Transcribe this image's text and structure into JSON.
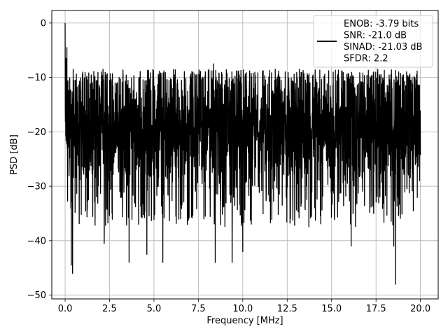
{
  "chart_data": {
    "type": "line",
    "xlabel": "Frequency [MHz]",
    "ylabel": "PSD [dB]",
    "xlim": [
      -0.75,
      21.0
    ],
    "ylim": [
      -50.7,
      2.3
    ],
    "x_ticks": [
      0.0,
      2.5,
      5.0,
      7.5,
      10.0,
      12.5,
      15.0,
      17.5,
      20.0
    ],
    "x_tick_labels": [
      "0.0",
      "2.5",
      "5.0",
      "7.5",
      "10.0",
      "12.5",
      "15.0",
      "17.5",
      "20.0"
    ],
    "y_ticks": [
      0,
      -10,
      -20,
      -30,
      -40,
      -50
    ],
    "y_tick_labels": [
      "0",
      "−10",
      "−20",
      "−30",
      "−40",
      "−50"
    ],
    "grid": true,
    "legend_position": "top-right",
    "legend_lines": [
      "ENOB: -3.79 bits",
      "SNR: -21.0 dB",
      "SINAD: -21.03 dB",
      "SFDR: 2.2"
    ],
    "series": [
      {
        "color": "#000000",
        "x_range": [
          0.0,
          20.0
        ],
        "approx_mean": -19.5,
        "approx_band": [
          -28.5,
          -11.5
        ],
        "envelope_min": -48,
        "envelope_max": -7.5,
        "notable_points": [
          {
            "x": 0.0,
            "y": 0.0
          },
          {
            "x": 0.05,
            "y": -6.5
          },
          {
            "x": 0.1,
            "y": -4.5
          },
          {
            "x": 0.35,
            "y": -44.5
          },
          {
            "x": 0.42,
            "y": -46.0
          },
          {
            "x": 0.5,
            "y": -10.5
          },
          {
            "x": 2.2,
            "y": -40.5
          },
          {
            "x": 3.6,
            "y": -44.0
          },
          {
            "x": 4.6,
            "y": -42.5
          },
          {
            "x": 5.5,
            "y": -44.0
          },
          {
            "x": 8.35,
            "y": -7.5
          },
          {
            "x": 8.45,
            "y": -44.0
          },
          {
            "x": 9.4,
            "y": -44.0
          },
          {
            "x": 10.0,
            "y": -42.0
          },
          {
            "x": 18.6,
            "y": -48.0
          },
          {
            "x": 18.5,
            "y": -41.0
          },
          {
            "x": 16.1,
            "y": -41.0
          }
        ]
      }
    ]
  }
}
